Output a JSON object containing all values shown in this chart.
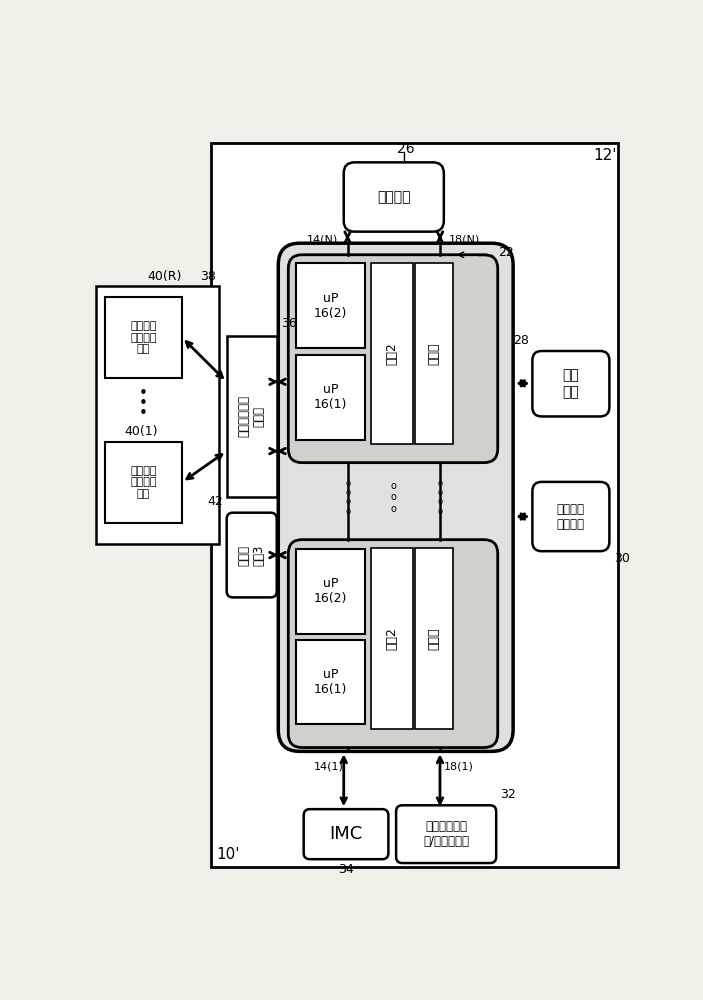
{
  "bg_color": "#f0f0e8",
  "peripheral_text": "外围装置",
  "compressed_controller_text": "经压缩存储器\n控制器",
  "storage_text": "存储\n装置",
  "fast_interconnect_text": "快速外围\n组件互连",
  "dma_text": "直接存储器存\n取/硬件加速器",
  "imc_text": "IMC",
  "compressed_tier3_text": "经压缩\n等级3",
  "dram_text": "双速率动\n态随机存\n储器",
  "uP1_text": "uP\n16(1)",
  "uP2_text": "uP\n16(2)",
  "tier2_text": "等级2",
  "multithread_text": "多线程",
  "label_12p": "12'",
  "label_10p": "10'",
  "label_26": "26",
  "label_36": "36",
  "label_38": "38",
  "label_42": "42",
  "label_22": "22",
  "label_28": "28",
  "label_30": "30",
  "label_32": "32",
  "label_34": "34",
  "label_14N": "14(N)",
  "label_18N": "18(N)",
  "label_14_1": "14(1)",
  "label_18_1": "18(1)",
  "label_40R": "40(R)",
  "label_401": "40(1)"
}
